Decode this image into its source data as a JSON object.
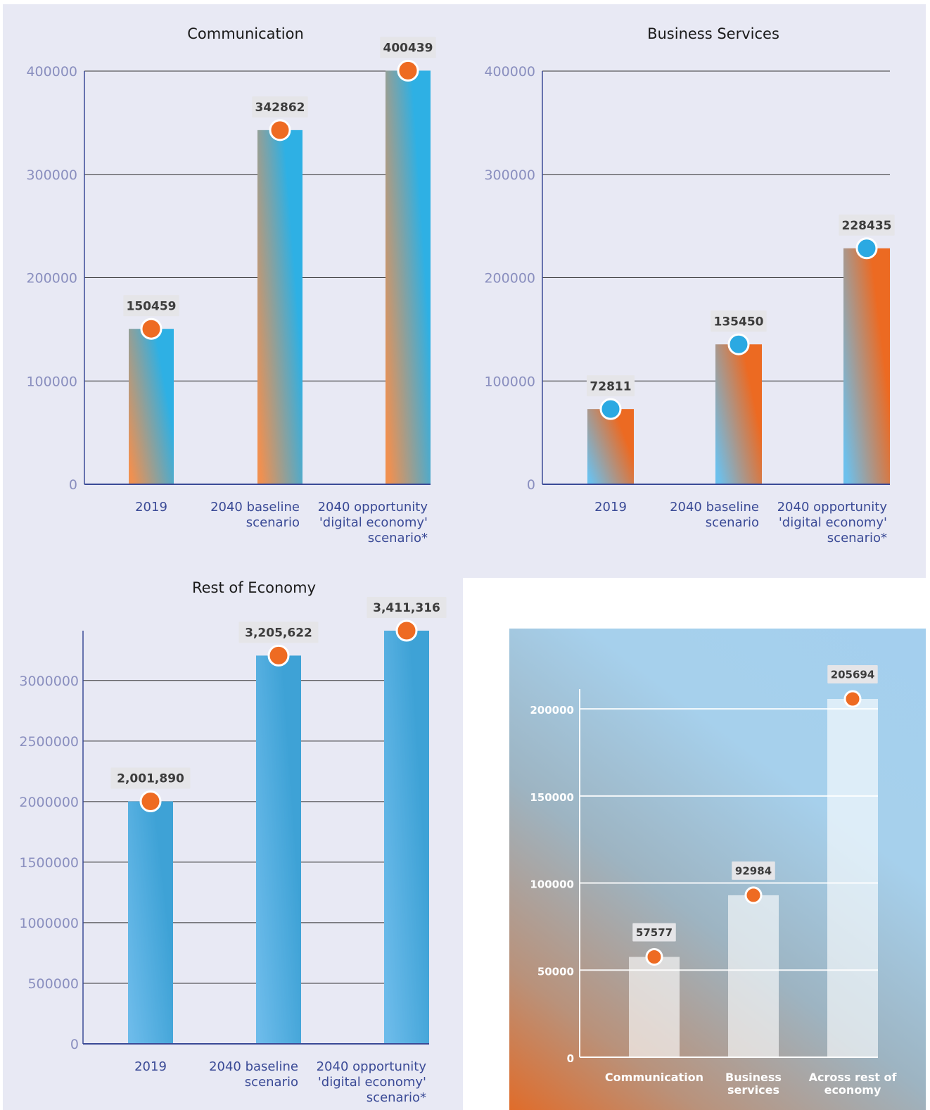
{
  "chart_data": [
    {
      "type": "bar",
      "title": "Communication",
      "categories": [
        "2019",
        "2040 baseline scenario",
        "2040 opportunity 'digital economy' scenario*"
      ],
      "category_lines": [
        [
          "2019"
        ],
        [
          "2040 baseline",
          "scenario"
        ],
        [
          "2040 opportunity",
          "'digital economy'",
          "scenario*"
        ]
      ],
      "values": [
        150459,
        342862,
        400439
      ],
      "data_labels": [
        "150459",
        "342862",
        "400439"
      ],
      "ylim": [
        0,
        400000
      ],
      "yticks": [
        0,
        100000,
        200000,
        300000,
        400000
      ],
      "ytick_labels": [
        "0",
        "100000",
        "200000",
        "300000",
        "400000"
      ],
      "grid": true,
      "bar_gradient": [
        "#2eb0e4",
        "#f09050"
      ],
      "marker_color": "#ee6b22"
    },
    {
      "type": "bar",
      "title": "Business Services",
      "categories": [
        "2019",
        "2040 baseline scenario",
        "2040 opportunity 'digital economy' scenario*"
      ],
      "category_lines": [
        [
          "2019"
        ],
        [
          "2040 baseline",
          "scenario"
        ],
        [
          "2040 opportunity",
          "'digital economy'",
          "scenario*"
        ]
      ],
      "values": [
        72811,
        135450,
        228435
      ],
      "data_labels": [
        "72811",
        "135450",
        "228435"
      ],
      "ylim": [
        0,
        400000
      ],
      "yticks": [
        0,
        100000,
        200000,
        300000,
        400000
      ],
      "ytick_labels": [
        "0",
        "100000",
        "200000",
        "300000",
        "400000"
      ],
      "grid": true,
      "bar_gradient": [
        "#ec6a22",
        "#6cc0ec"
      ],
      "marker_color": "#2ba9e2"
    },
    {
      "type": "bar",
      "title": "Rest of Economy",
      "categories": [
        "2019",
        "2040 baseline scenario",
        "2040 opportunity 'digital economy' scenario*"
      ],
      "category_lines": [
        [
          "2019"
        ],
        [
          "2040 baseline",
          "scenario"
        ],
        [
          "2040 opportunity",
          "'digital economy'",
          "scenario*"
        ]
      ],
      "values": [
        2001890,
        3205622,
        3411316
      ],
      "data_labels": [
        "2,001,890",
        "3,205,622",
        "3,411,316"
      ],
      "ylim": [
        0,
        3411316
      ],
      "yticks": [
        0,
        500000,
        1000000,
        1500000,
        2000000,
        2500000,
        3000000
      ],
      "ytick_labels": [
        "0",
        "500000",
        "1000000",
        "1500000",
        "2000000",
        "2500000",
        "3000000"
      ],
      "grid": true,
      "bar_gradient": [
        "#3ea2d6",
        "#6cbbea"
      ],
      "marker_color": "#ee6b22"
    },
    {
      "type": "bar",
      "title": "",
      "categories": [
        "Communication",
        "Business services",
        "Across rest of economy"
      ],
      "category_lines": [
        [
          "Communication"
        ],
        [
          "Business",
          "services"
        ],
        [
          "Across rest of",
          "economy"
        ]
      ],
      "values": [
        57577,
        92984,
        205694
      ],
      "data_labels": [
        "57577",
        "92984",
        "205694"
      ],
      "ylim": [
        0,
        205694
      ],
      "yticks": [
        0,
        50000,
        100000,
        150000,
        200000
      ],
      "ytick_labels": [
        "0",
        "50000",
        "100000",
        "150000",
        "200000"
      ],
      "grid": true,
      "bar_color": "#ffffff",
      "marker_color": "#ee6b22"
    }
  ]
}
